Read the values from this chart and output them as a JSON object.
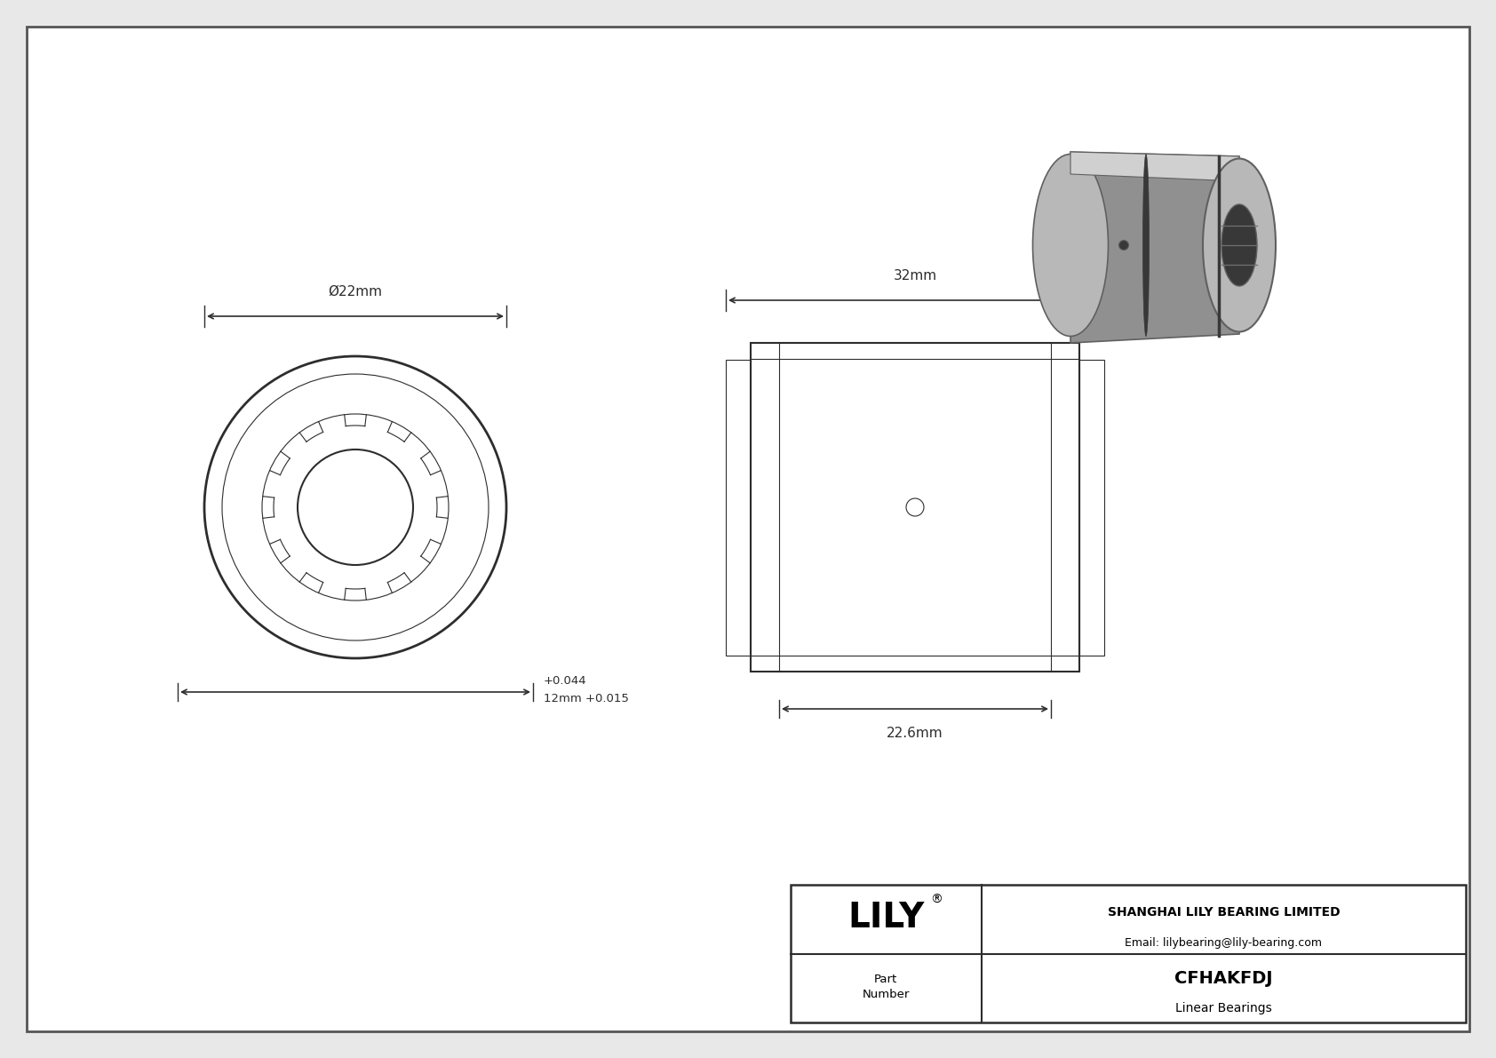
{
  "bg_color": "#e8e8e8",
  "drawing_bg": "#ffffff",
  "line_color": "#2d2d2d",
  "company_name": "SHANGHAI LILY BEARING LIMITED",
  "company_email": "Email: lilybearing@lily-bearing.com",
  "part_number": "CFHAKFDJ",
  "part_type": "Linear Bearings",
  "dim_outer_d": "Ø22mm",
  "dim_inner": "12mm +0.015",
  "dim_inner2": "+0.044",
  "dim_length": "32mm",
  "dim_inner_length": "22.6mm",
  "border_color": "#555555"
}
